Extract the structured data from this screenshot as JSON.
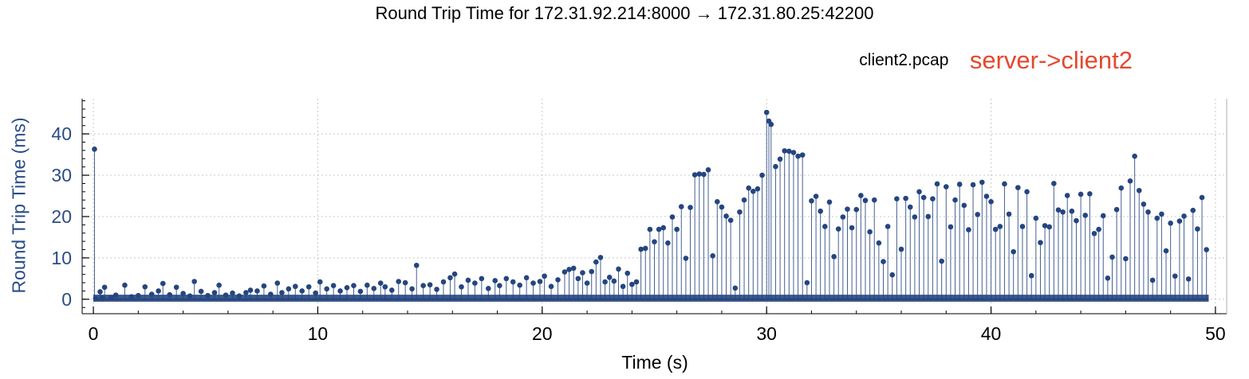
{
  "header": {
    "title": "Round Trip Time for 172.31.92.214:8000 → 172.31.80.25:42200",
    "file": "client2.pcap",
    "direction": "server->client2"
  },
  "colors": {
    "series": "#25457f",
    "ylabel": "#2b4c87",
    "direction": "#e5482d",
    "grid": "#c8c8c8"
  },
  "chart_data": {
    "type": "scatter",
    "style": "stem",
    "xlabel": "Time (s)",
    "ylabel": "Round Trip Time (ms)",
    "xlim": [
      -0.5,
      50.5
    ],
    "ylim": [
      -3.5,
      48.5
    ],
    "xticks": [
      0,
      10,
      20,
      30,
      40,
      50
    ],
    "yticks": [
      0,
      10,
      20,
      30,
      40
    ],
    "grid": true,
    "series": [
      {
        "points": [
          [
            0.05,
            36.3
          ],
          [
            0.1,
            0.2
          ],
          [
            0.3,
            1.8
          ],
          [
            0.4,
            0.3
          ],
          [
            0.5,
            2.9
          ],
          [
            0.8,
            0.4
          ],
          [
            1.0,
            1.0
          ],
          [
            1.4,
            3.4
          ],
          [
            1.7,
            0.6
          ],
          [
            2.0,
            0.9
          ],
          [
            2.3,
            3.0
          ],
          [
            2.6,
            1.2
          ],
          [
            2.9,
            2.0
          ],
          [
            3.1,
            3.8
          ],
          [
            3.4,
            1.1
          ],
          [
            3.7,
            2.9
          ],
          [
            4.0,
            1.4
          ],
          [
            4.3,
            0.8
          ],
          [
            4.5,
            4.3
          ],
          [
            4.8,
            1.9
          ],
          [
            5.1,
            0.9
          ],
          [
            5.4,
            1.6
          ],
          [
            5.6,
            3.4
          ],
          [
            5.9,
            1.0
          ],
          [
            6.2,
            1.5
          ],
          [
            6.5,
            0.8
          ],
          [
            6.8,
            1.6
          ],
          [
            7.0,
            2.2
          ],
          [
            7.3,
            2.0
          ],
          [
            7.6,
            3.2
          ],
          [
            7.9,
            1.2
          ],
          [
            8.2,
            3.9
          ],
          [
            8.4,
            1.6
          ],
          [
            8.7,
            2.5
          ],
          [
            9.0,
            3.1
          ],
          [
            9.3,
            2.0
          ],
          [
            9.6,
            3.0
          ],
          [
            9.9,
            1.5
          ],
          [
            10.1,
            4.2
          ],
          [
            10.4,
            2.5
          ],
          [
            10.7,
            3.3
          ],
          [
            11.0,
            2.0
          ],
          [
            11.3,
            2.8
          ],
          [
            11.6,
            3.3
          ],
          [
            11.9,
            1.9
          ],
          [
            12.2,
            3.4
          ],
          [
            12.5,
            2.6
          ],
          [
            12.8,
            3.9
          ],
          [
            13.0,
            3.0
          ],
          [
            13.3,
            2.2
          ],
          [
            13.6,
            4.3
          ],
          [
            13.9,
            4.0
          ],
          [
            14.2,
            2.5
          ],
          [
            14.4,
            8.2
          ],
          [
            14.7,
            3.3
          ],
          [
            15.0,
            3.5
          ],
          [
            15.3,
            2.4
          ],
          [
            15.6,
            4.2
          ],
          [
            15.9,
            5.2
          ],
          [
            16.1,
            6.1
          ],
          [
            16.4,
            3.0
          ],
          [
            16.7,
            4.6
          ],
          [
            17.0,
            3.9
          ],
          [
            17.3,
            5.0
          ],
          [
            17.6,
            2.6
          ],
          [
            17.9,
            4.5
          ],
          [
            18.1,
            3.3
          ],
          [
            18.4,
            5.0
          ],
          [
            18.7,
            4.2
          ],
          [
            19.0,
            3.4
          ],
          [
            19.3,
            5.2
          ],
          [
            19.6,
            3.9
          ],
          [
            19.9,
            4.3
          ],
          [
            20.1,
            5.6
          ],
          [
            20.4,
            3.1
          ],
          [
            20.7,
            4.7
          ],
          [
            21.0,
            6.6
          ],
          [
            21.2,
            7.2
          ],
          [
            21.4,
            7.5
          ],
          [
            21.6,
            5.0
          ],
          [
            21.8,
            6.4
          ],
          [
            22.0,
            3.9
          ],
          [
            22.2,
            6.7
          ],
          [
            22.4,
            9.0
          ],
          [
            22.6,
            10.1
          ],
          [
            22.8,
            4.2
          ],
          [
            23.0,
            5.3
          ],
          [
            23.2,
            4.4
          ],
          [
            23.4,
            7.3
          ],
          [
            23.6,
            3.1
          ],
          [
            23.8,
            6.3
          ],
          [
            24.0,
            3.6
          ],
          [
            24.2,
            4.2
          ],
          [
            24.4,
            12.1
          ],
          [
            24.6,
            12.3
          ],
          [
            24.8,
            16.9
          ],
          [
            25.0,
            13.9
          ],
          [
            25.2,
            16.9
          ],
          [
            25.4,
            17.3
          ],
          [
            25.6,
            13.6
          ],
          [
            25.8,
            19.9
          ],
          [
            26.0,
            16.9
          ],
          [
            26.2,
            22.4
          ],
          [
            26.4,
            9.9
          ],
          [
            26.6,
            22.2
          ],
          [
            26.8,
            30.1
          ],
          [
            27.0,
            30.3
          ],
          [
            27.2,
            30.2
          ],
          [
            27.4,
            31.3
          ],
          [
            27.6,
            10.5
          ],
          [
            27.8,
            23.6
          ],
          [
            28.0,
            22.3
          ],
          [
            28.2,
            20.1
          ],
          [
            28.4,
            19.1
          ],
          [
            28.6,
            2.7
          ],
          [
            28.8,
            21.1
          ],
          [
            29.0,
            24.0
          ],
          [
            29.2,
            26.9
          ],
          [
            29.4,
            26.1
          ],
          [
            29.6,
            26.7
          ],
          [
            29.8,
            30.0
          ],
          [
            30.0,
            45.2
          ],
          [
            30.1,
            43.1
          ],
          [
            30.2,
            42.3
          ],
          [
            30.4,
            32.1
          ],
          [
            30.6,
            33.9
          ],
          [
            30.8,
            35.9
          ],
          [
            31.0,
            35.8
          ],
          [
            31.2,
            35.5
          ],
          [
            31.4,
            34.6
          ],
          [
            31.6,
            34.9
          ],
          [
            31.8,
            4.0
          ],
          [
            32.0,
            23.8
          ],
          [
            32.2,
            24.9
          ],
          [
            32.4,
            21.3
          ],
          [
            32.6,
            17.6
          ],
          [
            32.8,
            23.5
          ],
          [
            33.0,
            10.3
          ],
          [
            33.2,
            17.0
          ],
          [
            33.4,
            19.9
          ],
          [
            33.6,
            21.8
          ],
          [
            33.8,
            17.3
          ],
          [
            34.0,
            21.7
          ],
          [
            34.2,
            25.1
          ],
          [
            34.4,
            23.9
          ],
          [
            34.6,
            16.3
          ],
          [
            34.8,
            24.0
          ],
          [
            35.0,
            13.6
          ],
          [
            35.2,
            9.1
          ],
          [
            35.4,
            17.6
          ],
          [
            35.6,
            5.9
          ],
          [
            35.8,
            24.3
          ],
          [
            36.0,
            12.1
          ],
          [
            36.2,
            24.4
          ],
          [
            36.4,
            22.3
          ],
          [
            36.6,
            19.9
          ],
          [
            36.8,
            26.0
          ],
          [
            37.0,
            24.6
          ],
          [
            37.2,
            20.0
          ],
          [
            37.4,
            24.3
          ],
          [
            37.6,
            27.9
          ],
          [
            37.8,
            9.2
          ],
          [
            38.0,
            27.2
          ],
          [
            38.2,
            17.5
          ],
          [
            38.4,
            24.0
          ],
          [
            38.6,
            27.8
          ],
          [
            38.8,
            22.7
          ],
          [
            39.0,
            16.8
          ],
          [
            39.2,
            27.7
          ],
          [
            39.4,
            20.5
          ],
          [
            39.6,
            28.3
          ],
          [
            39.8,
            24.9
          ],
          [
            40.0,
            23.6
          ],
          [
            40.2,
            16.9
          ],
          [
            40.4,
            17.6
          ],
          [
            40.6,
            27.9
          ],
          [
            40.8,
            20.6
          ],
          [
            41.0,
            11.5
          ],
          [
            41.2,
            27.0
          ],
          [
            41.4,
            17.6
          ],
          [
            41.6,
            26.0
          ],
          [
            41.8,
            5.7
          ],
          [
            42.0,
            19.6
          ],
          [
            42.2,
            13.7
          ],
          [
            42.4,
            17.8
          ],
          [
            42.6,
            17.5
          ],
          [
            42.8,
            28.0
          ],
          [
            43.0,
            21.6
          ],
          [
            43.2,
            21.1
          ],
          [
            43.4,
            25.1
          ],
          [
            43.6,
            21.3
          ],
          [
            43.8,
            19.0
          ],
          [
            44.0,
            25.4
          ],
          [
            44.2,
            20.3
          ],
          [
            44.4,
            25.5
          ],
          [
            44.6,
            15.9
          ],
          [
            44.8,
            16.9
          ],
          [
            45.0,
            20.2
          ],
          [
            45.2,
            5.1
          ],
          [
            45.4,
            10.2
          ],
          [
            45.6,
            21.7
          ],
          [
            45.8,
            26.9
          ],
          [
            46.0,
            9.8
          ],
          [
            46.2,
            28.6
          ],
          [
            46.4,
            34.6
          ],
          [
            46.6,
            26.3
          ],
          [
            46.8,
            23.0
          ],
          [
            47.0,
            21.1
          ],
          [
            47.2,
            4.6
          ],
          [
            47.4,
            19.6
          ],
          [
            47.6,
            20.6
          ],
          [
            47.8,
            11.7
          ],
          [
            48.0,
            18.4
          ],
          [
            48.2,
            5.6
          ],
          [
            48.4,
            18.9
          ],
          [
            48.6,
            20.1
          ],
          [
            48.8,
            4.9
          ],
          [
            49.0,
            21.5
          ],
          [
            49.2,
            17.0
          ],
          [
            49.4,
            24.6
          ],
          [
            49.6,
            12.0
          ]
        ]
      }
    ]
  }
}
